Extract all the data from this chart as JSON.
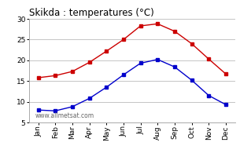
{
  "title": "Skikda : temperatures (°C)",
  "months": [
    "Jan",
    "Feb",
    "Mar",
    "Apr",
    "May",
    "Jun",
    "Jul",
    "Aug",
    "Sep",
    "Oct",
    "Nov",
    "Dec"
  ],
  "red_data": [
    15.8,
    16.3,
    17.3,
    19.5,
    22.2,
    25.0,
    28.3,
    28.8,
    27.0,
    24.0,
    20.3,
    16.7
  ],
  "blue_data": [
    8.0,
    7.8,
    8.8,
    10.8,
    13.5,
    16.5,
    19.3,
    20.2,
    18.4,
    15.2,
    11.5,
    9.3
  ],
  "red_color": "#cc0000",
  "blue_color": "#0000cc",
  "ylim": [
    5,
    30
  ],
  "yticks": [
    5,
    10,
    15,
    20,
    25,
    30
  ],
  "background_color": "#ffffff",
  "grid_color": "#bbbbbb",
  "watermark": "www.allmetsat.com",
  "title_fontsize": 8.5,
  "tick_fontsize": 6.5,
  "marker": "s",
  "marker_size": 2.5,
  "line_width": 1.0
}
